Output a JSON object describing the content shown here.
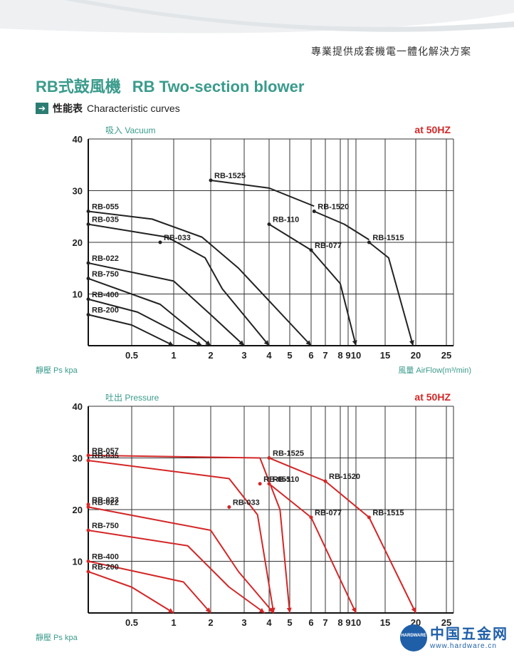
{
  "header": {
    "tagline": "專業提供成套機電一體化解決方案",
    "title_zh": "RB式鼓風機",
    "title_en": "RB Two-section blower",
    "section_icon": "arrow-right-icon",
    "section_zh": "性能表",
    "section_en": "Characteristic curves"
  },
  "watermark": {
    "icon": "globe-icon",
    "badge": "HARDWARE",
    "name": "中国五金网",
    "url": "www.hardware.cn"
  },
  "colors": {
    "brand": "#3a9b8c",
    "accent": "#d42626",
    "vacuum_curve": "#222222",
    "pressure_curve": "#d42626",
    "grid": "#333333"
  },
  "chart_data": [
    {
      "type": "line",
      "title": "吸入 Vacuum",
      "frequency_label": "at 50HZ",
      "ylabel": "靜壓 Ps kpa",
      "xlabel": "風量 AirFlow(m³/min)",
      "xscale": "log",
      "ylim": [
        0,
        40
      ],
      "yticks": [
        10,
        20,
        30,
        40
      ],
      "xticks": [
        "0.5",
        "1",
        "2",
        "3",
        "4",
        "5",
        "6",
        "7",
        "8",
        "9",
        "10",
        "15",
        "20",
        "25"
      ],
      "grid": true,
      "series": [
        {
          "name": "RB-055",
          "points": [
            [
              0.05,
              26
            ],
            [
              0.7,
              24.5
            ],
            [
              1.7,
              21
            ],
            [
              2.8,
              15
            ],
            [
              6,
              0
            ]
          ]
        },
        {
          "name": "RB-035",
          "points": [
            [
              0.05,
              23.5
            ],
            [
              0.9,
              21
            ],
            [
              1.8,
              17
            ],
            [
              2.3,
              11
            ],
            [
              4,
              0
            ]
          ]
        },
        {
          "name": "RB-033",
          "points": [
            [
              0.8,
              20
            ]
          ]
        },
        {
          "name": "RB-022",
          "points": [
            [
              0.05,
              16
            ],
            [
              1,
              12.5
            ],
            [
              2,
              6
            ],
            [
              3,
              0
            ]
          ]
        },
        {
          "name": "RB-750",
          "points": [
            [
              0.05,
              13
            ],
            [
              0.8,
              8
            ],
            [
              2,
              0
            ]
          ]
        },
        {
          "name": "RB-400",
          "points": [
            [
              0.05,
              9
            ],
            [
              0.55,
              6.5
            ],
            [
              1.7,
              0
            ]
          ]
        },
        {
          "name": "RB-200",
          "points": [
            [
              0.05,
              6
            ],
            [
              0.5,
              4
            ],
            [
              1,
              0
            ]
          ]
        },
        {
          "name": "RB-1525",
          "points": [
            [
              2,
              32
            ],
            [
              4,
              30.5
            ],
            [
              6.2,
              27
            ]
          ]
        },
        {
          "name": "RB-1520",
          "points": [
            [
              6.2,
              26
            ],
            [
              8.5,
              23.5
            ],
            [
              12,
              20.5
            ]
          ]
        },
        {
          "name": "RB-1515",
          "points": [
            [
              12,
              20
            ],
            [
              15.5,
              17
            ],
            [
              19.5,
              0
            ]
          ]
        },
        {
          "name": "RB-110",
          "points": [
            [
              4,
              23.5
            ],
            [
              6,
              18.5
            ]
          ]
        },
        {
          "name": "RB-077",
          "points": [
            [
              6,
              18.5
            ],
            [
              8,
              12
            ],
            [
              10,
              0
            ]
          ]
        }
      ]
    },
    {
      "type": "line",
      "title": "吐出 Pressure",
      "frequency_label": "at 50HZ",
      "ylabel": "靜壓 Ps kpa",
      "xlabel": "",
      "xscale": "log",
      "ylim": [
        0,
        40
      ],
      "yticks": [
        10,
        20,
        30,
        40
      ],
      "xticks": [
        "0.5",
        "1",
        "2",
        "3",
        "4",
        "5",
        "6",
        "7",
        "8",
        "9",
        "10",
        "15",
        "20",
        "25"
      ],
      "grid": true,
      "series": [
        {
          "name": "RB-057",
          "points": [
            [
              0.05,
              30.5
            ],
            [
              3.6,
              30
            ],
            [
              4.5,
              20
            ],
            [
              5,
              0
            ]
          ]
        },
        {
          "name": "RB-035",
          "points": [
            [
              0.05,
              29.5
            ],
            [
              2.5,
              26
            ],
            [
              3.5,
              19
            ],
            [
              4.2,
              0
            ]
          ]
        },
        {
          "name": "RB-055",
          "points": [
            [
              3.6,
              25
            ]
          ]
        },
        {
          "name": "RB-023",
          "points": [
            [
              0.05,
              21
            ]
          ]
        },
        {
          "name": "RB-022",
          "points": [
            [
              0.05,
              20.5
            ],
            [
              2,
              16
            ],
            [
              2.8,
              8
            ],
            [
              4.2,
              0
            ]
          ]
        },
        {
          "name": "RB-033",
          "points": [
            [
              2.5,
              20.5
            ]
          ]
        },
        {
          "name": "RB-750",
          "points": [
            [
              0.05,
              16
            ],
            [
              1.3,
              13
            ],
            [
              2.5,
              5
            ],
            [
              3.8,
              0
            ]
          ]
        },
        {
          "name": "RB-400",
          "points": [
            [
              0.05,
              10
            ],
            [
              1.2,
              6
            ],
            [
              2,
              0
            ]
          ]
        },
        {
          "name": "RB-200",
          "points": [
            [
              0.05,
              8
            ],
            [
              0.5,
              5
            ],
            [
              1,
              0
            ]
          ]
        },
        {
          "name": "RB-1525",
          "points": [
            [
              4,
              30
            ],
            [
              7,
              25.5
            ],
            [
              12,
              18.5
            ],
            [
              20,
              0
            ]
          ]
        },
        {
          "name": "RB-1520",
          "points": [
            [
              7,
              25.5
            ]
          ]
        },
        {
          "name": "RB-1515",
          "points": [
            [
              12,
              18.5
            ]
          ]
        },
        {
          "name": "RB-110",
          "points": [
            [
              4,
              25
            ],
            [
              6,
              18.5
            ],
            [
              10,
              0
            ]
          ]
        },
        {
          "name": "RB-077",
          "points": [
            [
              6,
              18.5
            ]
          ]
        }
      ]
    }
  ]
}
